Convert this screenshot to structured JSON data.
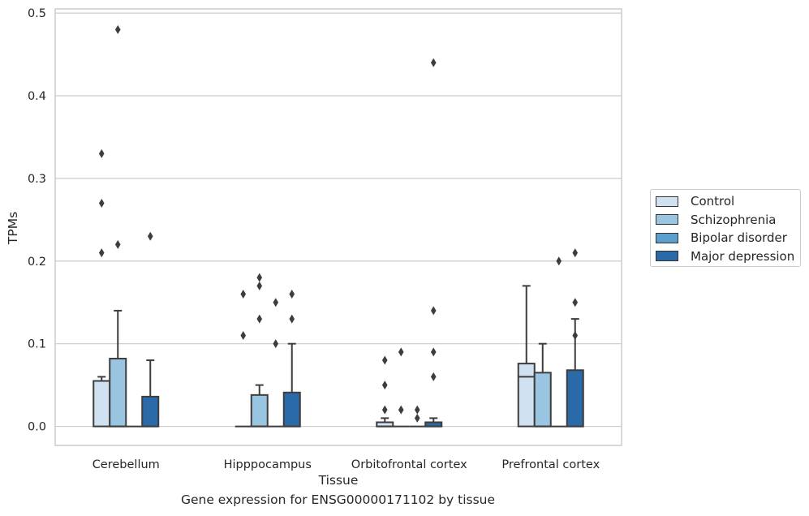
{
  "chart_data": {
    "type": "box",
    "xlabel": "Tissue",
    "ylabel": "TPMs",
    "caption": "Gene expression for ENSG00000171102 by tissue",
    "ylim": [
      -0.023,
      0.505
    ],
    "yticks": [
      0.0,
      0.1,
      0.2,
      0.3,
      0.4,
      0.5
    ],
    "ytick_labels": [
      "0.0",
      "0.1",
      "0.2",
      "0.3",
      "0.4",
      "0.5"
    ],
    "grid": true,
    "legend_position": "right",
    "categories": [
      "Cerebellum",
      "Hipppocampus",
      "Orbitofrontal cortex",
      "Prefrontal cortex"
    ],
    "series": [
      {
        "name": "Control",
        "color": "#d0e1f2",
        "boxes": [
          {
            "q1": 0.0,
            "median": 0.055,
            "q3": 0.055,
            "whisker_low": 0.0,
            "whisker_high": 0.06,
            "outliers": [
              0.33,
              0.27,
              0.21
            ]
          },
          {
            "q1": 0.0,
            "median": 0.0,
            "q3": 0.0,
            "whisker_low": 0.0,
            "whisker_high": 0.0,
            "outliers": [
              0.16,
              0.11
            ]
          },
          {
            "q1": 0.0,
            "median": 0.0,
            "q3": 0.005,
            "whisker_low": 0.0,
            "whisker_high": 0.01,
            "outliers": [
              0.08,
              0.05,
              0.02
            ]
          },
          {
            "q1": 0.0,
            "median": 0.06,
            "q3": 0.076,
            "whisker_low": 0.0,
            "whisker_high": 0.17,
            "outliers": []
          }
        ]
      },
      {
        "name": "Schizophrenia",
        "color": "#9ac5e0",
        "boxes": [
          {
            "q1": 0.0,
            "median": 0.0,
            "q3": 0.082,
            "whisker_low": 0.0,
            "whisker_high": 0.14,
            "outliers": [
              0.48,
              0.22
            ]
          },
          {
            "q1": 0.0,
            "median": 0.0,
            "q3": 0.038,
            "whisker_low": 0.0,
            "whisker_high": 0.05,
            "outliers": [
              0.18,
              0.17,
              0.13
            ]
          },
          {
            "q1": 0.0,
            "median": 0.0,
            "q3": 0.0,
            "whisker_low": 0.0,
            "whisker_high": 0.0,
            "outliers": [
              0.09,
              0.02
            ]
          },
          {
            "q1": 0.0,
            "median": 0.0,
            "q3": 0.065,
            "whisker_low": 0.0,
            "whisker_high": 0.1,
            "outliers": []
          }
        ]
      },
      {
        "name": "Bipolar disorder",
        "color": "#5a9fcd",
        "boxes": [
          {
            "q1": 0.0,
            "median": 0.0,
            "q3": 0.0,
            "whisker_low": 0.0,
            "whisker_high": 0.0,
            "outliers": []
          },
          {
            "q1": 0.0,
            "median": 0.0,
            "q3": 0.0,
            "whisker_low": 0.0,
            "whisker_high": 0.0,
            "outliers": [
              0.15,
              0.1
            ]
          },
          {
            "q1": 0.0,
            "median": 0.0,
            "q3": 0.0,
            "whisker_low": 0.0,
            "whisker_high": 0.0,
            "outliers": [
              0.02,
              0.01
            ]
          },
          {
            "q1": 0.0,
            "median": 0.0,
            "q3": 0.0,
            "whisker_low": 0.0,
            "whisker_high": 0.0,
            "outliers": [
              0.2
            ]
          }
        ]
      },
      {
        "name": "Major depression",
        "color": "#2b6aa9",
        "boxes": [
          {
            "q1": 0.0,
            "median": 0.0,
            "q3": 0.036,
            "whisker_low": 0.0,
            "whisker_high": 0.08,
            "outliers": [
              0.23
            ]
          },
          {
            "q1": 0.0,
            "median": 0.0,
            "q3": 0.041,
            "whisker_low": 0.0,
            "whisker_high": 0.1,
            "outliers": [
              0.16,
              0.13
            ]
          },
          {
            "q1": 0.0,
            "median": 0.0,
            "q3": 0.005,
            "whisker_low": 0.0,
            "whisker_high": 0.01,
            "outliers": [
              0.44,
              0.14,
              0.09,
              0.06
            ]
          },
          {
            "q1": 0.0,
            "median": 0.0,
            "q3": 0.068,
            "whisker_low": 0.0,
            "whisker_high": 0.13,
            "outliers": [
              0.21,
              0.15,
              0.11
            ]
          }
        ]
      }
    ]
  }
}
